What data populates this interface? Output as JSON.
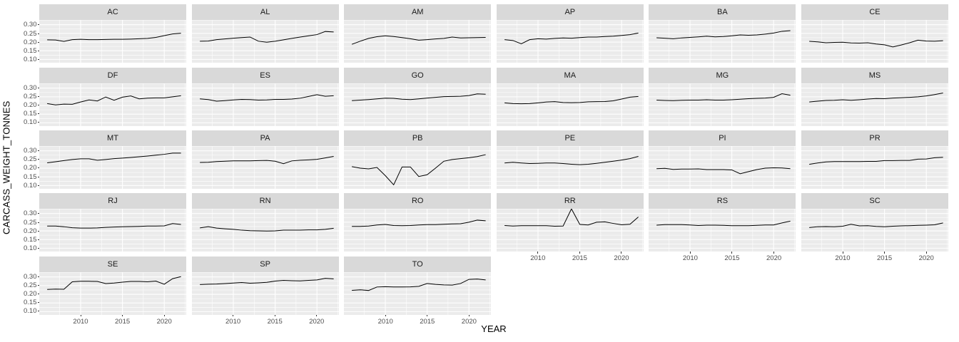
{
  "figure": {
    "y_title": "CARCASS_WEIGHT_TONNES",
    "x_title": "YEAR"
  },
  "chart_data": {
    "type": "line",
    "facet_by": "state",
    "title": "",
    "xlabel": "YEAR",
    "ylabel": "CARCASS_WEIGHT_TONNES",
    "x": [
      2006,
      2007,
      2008,
      2009,
      2010,
      2011,
      2012,
      2013,
      2014,
      2015,
      2016,
      2017,
      2018,
      2019,
      2020,
      2021,
      2022
    ],
    "x_tick_labels": [
      "2010",
      "2015",
      "2020"
    ],
    "x_ticks": [
      2010,
      2015,
      2020
    ],
    "x_minor": [
      2007.5,
      2012.5,
      2017.5,
      2022.5
    ],
    "y_tick_labels": [
      "0.30",
      "0.25",
      "0.20",
      "0.15",
      "0.10"
    ],
    "y_ticks": [
      0.3,
      0.25,
      0.2,
      0.15,
      0.1
    ],
    "y_minor": [
      0.125,
      0.175,
      0.225,
      0.275,
      0.325
    ],
    "xlim": [
      2005.05,
      2022.63
    ],
    "ylim": [
      0.081,
      0.3275
    ],
    "grid": true,
    "legend": "none",
    "line_color": "#000000",
    "panel_bg": "#ebebeb",
    "strip_bg": "#d9d9d9",
    "grid_color": "#ffffff",
    "axis_text_color": "#4d4d4d",
    "facets": [
      {
        "label": "AC",
        "values": [
          0.213,
          0.212,
          0.204,
          0.214,
          0.216,
          0.214,
          0.214,
          0.215,
          0.216,
          0.216,
          0.217,
          0.219,
          0.221,
          0.227,
          0.237,
          0.247,
          0.251
        ]
      },
      {
        "label": "AL",
        "values": [
          0.205,
          0.206,
          0.214,
          0.218,
          0.222,
          0.226,
          0.229,
          0.205,
          0.199,
          0.205,
          0.213,
          0.221,
          0.229,
          0.236,
          0.243,
          0.261,
          0.258
        ]
      },
      {
        "label": "AM",
        "values": [
          0.187,
          0.205,
          0.221,
          0.231,
          0.236,
          0.232,
          0.226,
          0.219,
          0.211,
          0.214,
          0.218,
          0.221,
          0.229,
          0.224,
          0.225,
          0.226,
          0.227
        ]
      },
      {
        "label": "AP",
        "values": [
          0.214,
          0.209,
          0.19,
          0.214,
          0.219,
          0.217,
          0.221,
          0.224,
          0.222,
          0.226,
          0.229,
          0.229,
          0.232,
          0.234,
          0.238,
          0.243,
          0.252
        ]
      },
      {
        "label": "BA",
        "values": [
          0.225,
          0.222,
          0.219,
          0.224,
          0.227,
          0.23,
          0.234,
          0.23,
          0.232,
          0.236,
          0.241,
          0.239,
          0.241,
          0.246,
          0.252,
          0.262,
          0.266
        ]
      },
      {
        "label": "CE",
        "values": [
          0.204,
          0.201,
          0.196,
          0.198,
          0.199,
          0.195,
          0.194,
          0.196,
          0.189,
          0.184,
          0.172,
          0.183,
          0.196,
          0.211,
          0.206,
          0.205,
          0.208
        ]
      },
      {
        "label": "DF",
        "values": [
          0.211,
          0.203,
          0.208,
          0.207,
          0.22,
          0.232,
          0.226,
          0.249,
          0.23,
          0.248,
          0.255,
          0.238,
          0.242,
          0.244,
          0.244,
          0.25,
          0.256
        ]
      },
      {
        "label": "ES",
        "values": [
          0.238,
          0.234,
          0.225,
          0.228,
          0.232,
          0.235,
          0.234,
          0.231,
          0.232,
          0.235,
          0.235,
          0.237,
          0.242,
          0.252,
          0.262,
          0.253,
          0.256
        ]
      },
      {
        "label": "GO",
        "values": [
          0.228,
          0.231,
          0.234,
          0.238,
          0.242,
          0.241,
          0.236,
          0.234,
          0.238,
          0.243,
          0.247,
          0.251,
          0.252,
          0.253,
          0.257,
          0.267,
          0.265
        ]
      },
      {
        "label": "MA",
        "values": [
          0.215,
          0.211,
          0.21,
          0.211,
          0.215,
          0.22,
          0.222,
          0.217,
          0.216,
          0.217,
          0.221,
          0.222,
          0.223,
          0.227,
          0.237,
          0.248,
          0.252
        ]
      },
      {
        "label": "MG",
        "values": [
          0.231,
          0.229,
          0.228,
          0.23,
          0.231,
          0.231,
          0.233,
          0.231,
          0.231,
          0.233,
          0.236,
          0.239,
          0.241,
          0.243,
          0.247,
          0.268,
          0.259
        ]
      },
      {
        "label": "MS",
        "values": [
          0.22,
          0.225,
          0.229,
          0.23,
          0.233,
          0.23,
          0.233,
          0.237,
          0.24,
          0.239,
          0.243,
          0.245,
          0.247,
          0.25,
          0.255,
          0.263,
          0.272
        ]
      },
      {
        "label": "MT",
        "values": [
          0.231,
          0.237,
          0.244,
          0.25,
          0.254,
          0.254,
          0.246,
          0.25,
          0.255,
          0.258,
          0.262,
          0.266,
          0.27,
          0.275,
          0.28,
          0.287,
          0.287
        ]
      },
      {
        "label": "PA",
        "values": [
          0.233,
          0.234,
          0.238,
          0.24,
          0.242,
          0.242,
          0.242,
          0.244,
          0.245,
          0.24,
          0.226,
          0.242,
          0.246,
          0.248,
          0.251,
          0.259,
          0.268
        ]
      },
      {
        "label": "PB",
        "values": [
          0.209,
          0.2,
          0.196,
          0.204,
          0.157,
          0.104,
          0.207,
          0.207,
          0.152,
          0.162,
          0.2,
          0.24,
          0.25,
          0.255,
          0.26,
          0.267,
          0.278
        ]
      },
      {
        "label": "PE",
        "values": [
          0.23,
          0.234,
          0.23,
          0.227,
          0.228,
          0.23,
          0.23,
          0.227,
          0.223,
          0.22,
          0.223,
          0.228,
          0.234,
          0.24,
          0.247,
          0.255,
          0.268
        ]
      },
      {
        "label": "PI",
        "values": [
          0.197,
          0.199,
          0.193,
          0.195,
          0.195,
          0.196,
          0.192,
          0.192,
          0.192,
          0.19,
          0.168,
          0.18,
          0.192,
          0.2,
          0.202,
          0.201,
          0.197
        ]
      },
      {
        "label": "PR",
        "values": [
          0.222,
          0.23,
          0.236,
          0.238,
          0.238,
          0.238,
          0.238,
          0.239,
          0.239,
          0.244,
          0.244,
          0.245,
          0.245,
          0.252,
          0.253,
          0.26,
          0.263
        ]
      },
      {
        "label": "RJ",
        "values": [
          0.228,
          0.228,
          0.224,
          0.218,
          0.216,
          0.216,
          0.217,
          0.22,
          0.222,
          0.224,
          0.225,
          0.226,
          0.228,
          0.228,
          0.229,
          0.242,
          0.237
        ]
      },
      {
        "label": "RN",
        "values": [
          0.217,
          0.224,
          0.216,
          0.212,
          0.209,
          0.204,
          0.201,
          0.2,
          0.199,
          0.2,
          0.204,
          0.204,
          0.204,
          0.206,
          0.206,
          0.209,
          0.215
        ]
      },
      {
        "label": "RO",
        "values": [
          0.226,
          0.226,
          0.228,
          0.234,
          0.237,
          0.231,
          0.23,
          0.231,
          0.234,
          0.236,
          0.236,
          0.238,
          0.24,
          0.241,
          0.25,
          0.262,
          0.258
        ]
      },
      {
        "label": "RR",
        "values": [
          0.231,
          0.228,
          0.23,
          0.23,
          0.23,
          0.23,
          0.227,
          0.228,
          0.327,
          0.237,
          0.234,
          0.25,
          0.252,
          0.243,
          0.235,
          0.238,
          0.28
        ]
      },
      {
        "label": "RS",
        "values": [
          0.233,
          0.236,
          0.236,
          0.236,
          0.234,
          0.231,
          0.233,
          0.233,
          0.232,
          0.23,
          0.23,
          0.23,
          0.232,
          0.234,
          0.234,
          0.246,
          0.256
        ]
      },
      {
        "label": "SC",
        "values": [
          0.219,
          0.224,
          0.225,
          0.224,
          0.227,
          0.238,
          0.229,
          0.23,
          0.226,
          0.224,
          0.227,
          0.229,
          0.23,
          0.232,
          0.233,
          0.235,
          0.246
        ]
      },
      {
        "label": "SE",
        "values": [
          0.228,
          0.23,
          0.229,
          0.272,
          0.275,
          0.275,
          0.274,
          0.262,
          0.265,
          0.27,
          0.274,
          0.274,
          0.272,
          0.276,
          0.258,
          0.29,
          0.302
        ]
      },
      {
        "label": "SP",
        "values": [
          0.256,
          0.258,
          0.259,
          0.262,
          0.265,
          0.268,
          0.264,
          0.266,
          0.269,
          0.276,
          0.28,
          0.278,
          0.277,
          0.28,
          0.283,
          0.292,
          0.289
        ]
      },
      {
        "label": "TO",
        "values": [
          0.223,
          0.226,
          0.222,
          0.242,
          0.244,
          0.242,
          0.242,
          0.243,
          0.246,
          0.262,
          0.257,
          0.254,
          0.253,
          0.262,
          0.286,
          0.288,
          0.283
        ]
      }
    ]
  }
}
